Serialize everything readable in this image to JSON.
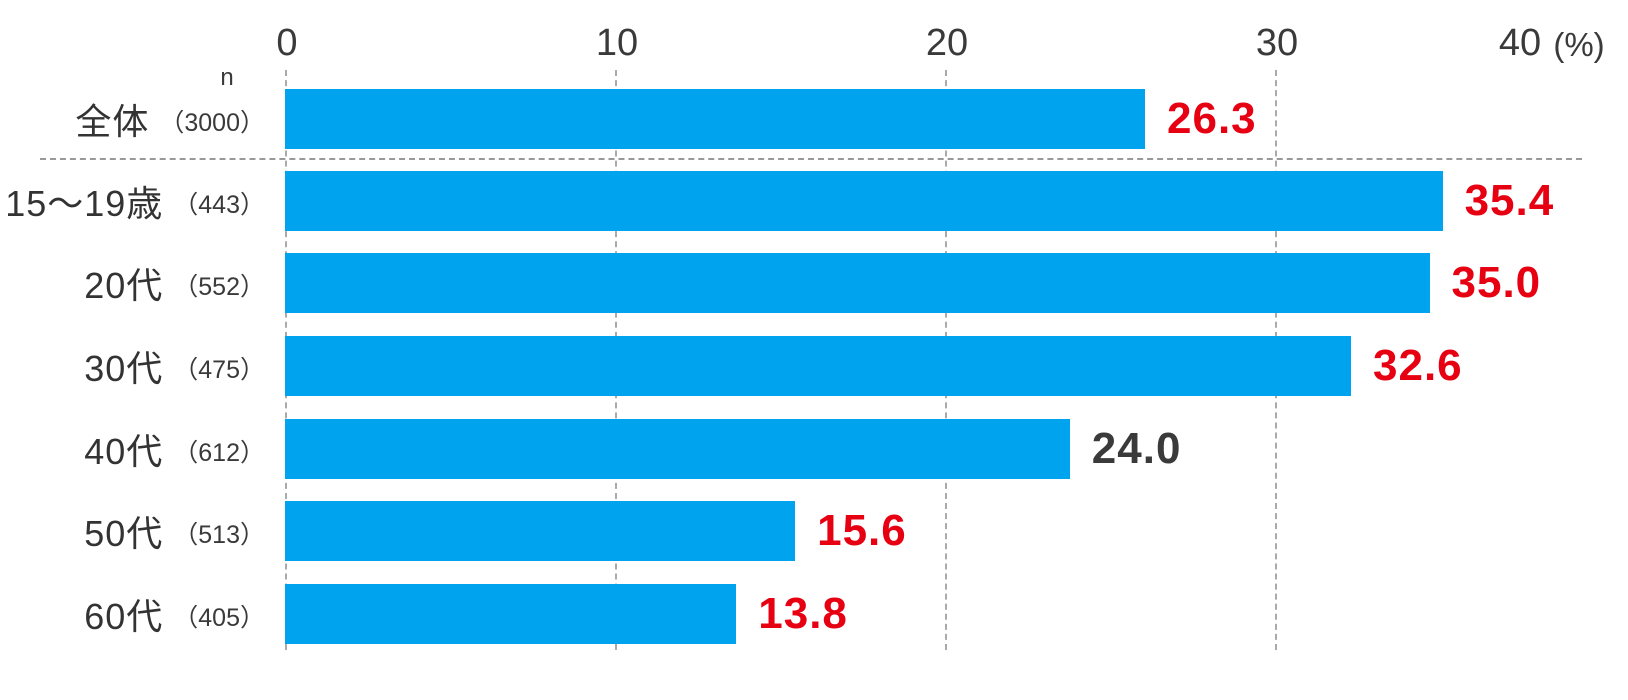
{
  "chart_data": {
    "type": "bar",
    "orientation": "horizontal",
    "title": "",
    "unit_label": "(%)",
    "n_column_header": "n",
    "axis": {
      "min": 0,
      "max": 40,
      "ticks": [
        "0",
        "10",
        "20",
        "30",
        "40"
      ],
      "grid": "dashed-vertical-at-0-10-20-30"
    },
    "bar_color": "#00a3ee",
    "value_color_highlight": "#e60012",
    "value_color_normal": "#3a3a3a",
    "gridline_color": "#aaaaaa",
    "separator_after_row_index": 0,
    "rows": [
      {
        "category": "全体",
        "n": "（3000）",
        "value": 26.3,
        "value_label": "26.3",
        "highlight": true
      },
      {
        "category": "15～19歳",
        "n": "（443）",
        "value": 35.4,
        "value_label": "35.4",
        "highlight": true
      },
      {
        "category": "20代",
        "n": "（552）",
        "value": 35.0,
        "value_label": "35.0",
        "highlight": true
      },
      {
        "category": "30代",
        "n": "（475）",
        "value": 32.6,
        "value_label": "32.6",
        "highlight": true
      },
      {
        "category": "40代",
        "n": "（612）",
        "value": 24.0,
        "value_label": "24.0",
        "highlight": false
      },
      {
        "category": "50代",
        "n": "（513）",
        "value": 15.6,
        "value_label": "15.6",
        "highlight": true
      },
      {
        "category": "60代",
        "n": "（405）",
        "value": 13.8,
        "value_label": "13.8",
        "highlight": true
      }
    ]
  }
}
